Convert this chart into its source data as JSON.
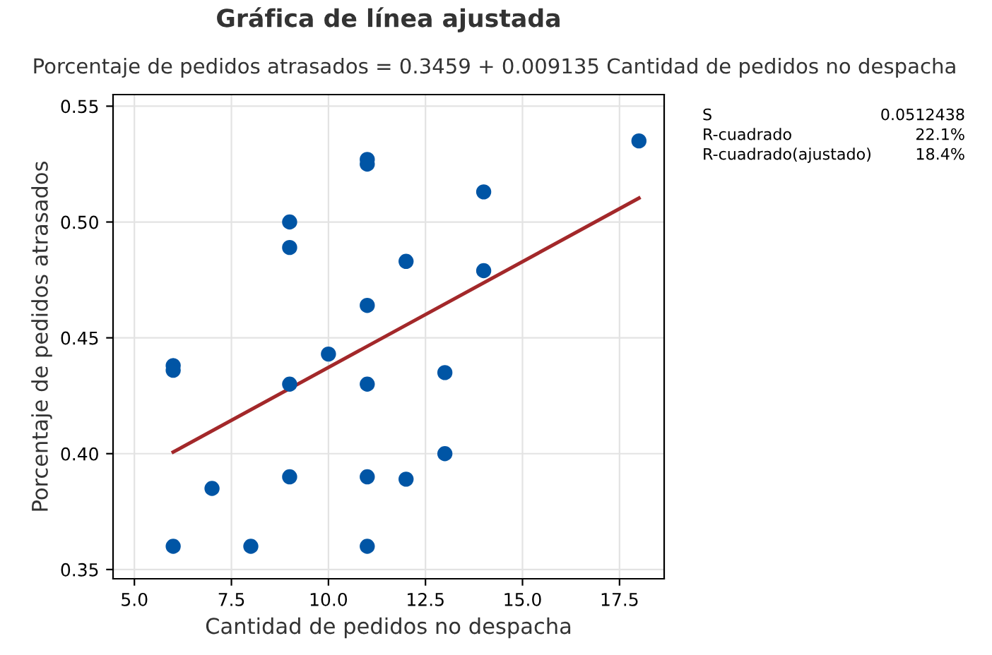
{
  "chart_data": {
    "type": "scatter",
    "title": "Gráfica de línea ajustada",
    "subtitle": "Porcentaje de pedidos atrasados = 0.3459 + 0.009135 Cantidad de pedidos no despacha",
    "xlabel": "Cantidad de pedidos no despacha",
    "ylabel": "Porcentaje de pedidos atrasados",
    "series": [
      {
        "color": "#0055a5",
        "marker": "circle",
        "x": [
          6,
          6,
          6,
          7,
          8,
          9,
          9,
          9,
          9,
          10,
          11,
          11,
          11,
          11,
          11,
          11,
          12,
          12,
          13,
          13,
          14,
          14,
          18
        ],
        "values": [
          0.438,
          0.436,
          0.36,
          0.385,
          0.36,
          0.5,
          0.489,
          0.43,
          0.39,
          0.443,
          0.527,
          0.525,
          0.464,
          0.43,
          0.39,
          0.36,
          0.483,
          0.389,
          0.435,
          0.4,
          0.513,
          0.479,
          0.535
        ]
      },
      {
        "type": "line",
        "color": "#a3282a",
        "marker": "none",
        "x": [
          6,
          18
        ],
        "values": [
          0.4007,
          0.5103
        ]
      }
    ],
    "xlim": [
      4.45,
      18.65
    ],
    "xticks": [
      {
        "value": 5,
        "label": "5.0"
      },
      {
        "value": 7.5,
        "label": "7.5"
      },
      {
        "value": 10,
        "label": "10.0"
      },
      {
        "value": 12.5,
        "label": "12.5"
      },
      {
        "value": 15,
        "label": "15.0"
      },
      {
        "value": 17.5,
        "label": "17.5"
      }
    ],
    "ylim": [
      0.346,
      0.555
    ],
    "yticks": [
      {
        "value": 0.35,
        "label": "0.35"
      },
      {
        "value": 0.4,
        "label": "0.40"
      },
      {
        "value": 0.45,
        "label": "0.45"
      },
      {
        "value": 0.5,
        "label": "0.50"
      },
      {
        "value": 0.55,
        "label": "0.55"
      }
    ],
    "grid": true,
    "annotations": [
      "S",
      "0.0512438",
      "R-cuadrado",
      "22.1%",
      "R-cuadrado(ajustado)",
      "18.4%"
    ]
  }
}
